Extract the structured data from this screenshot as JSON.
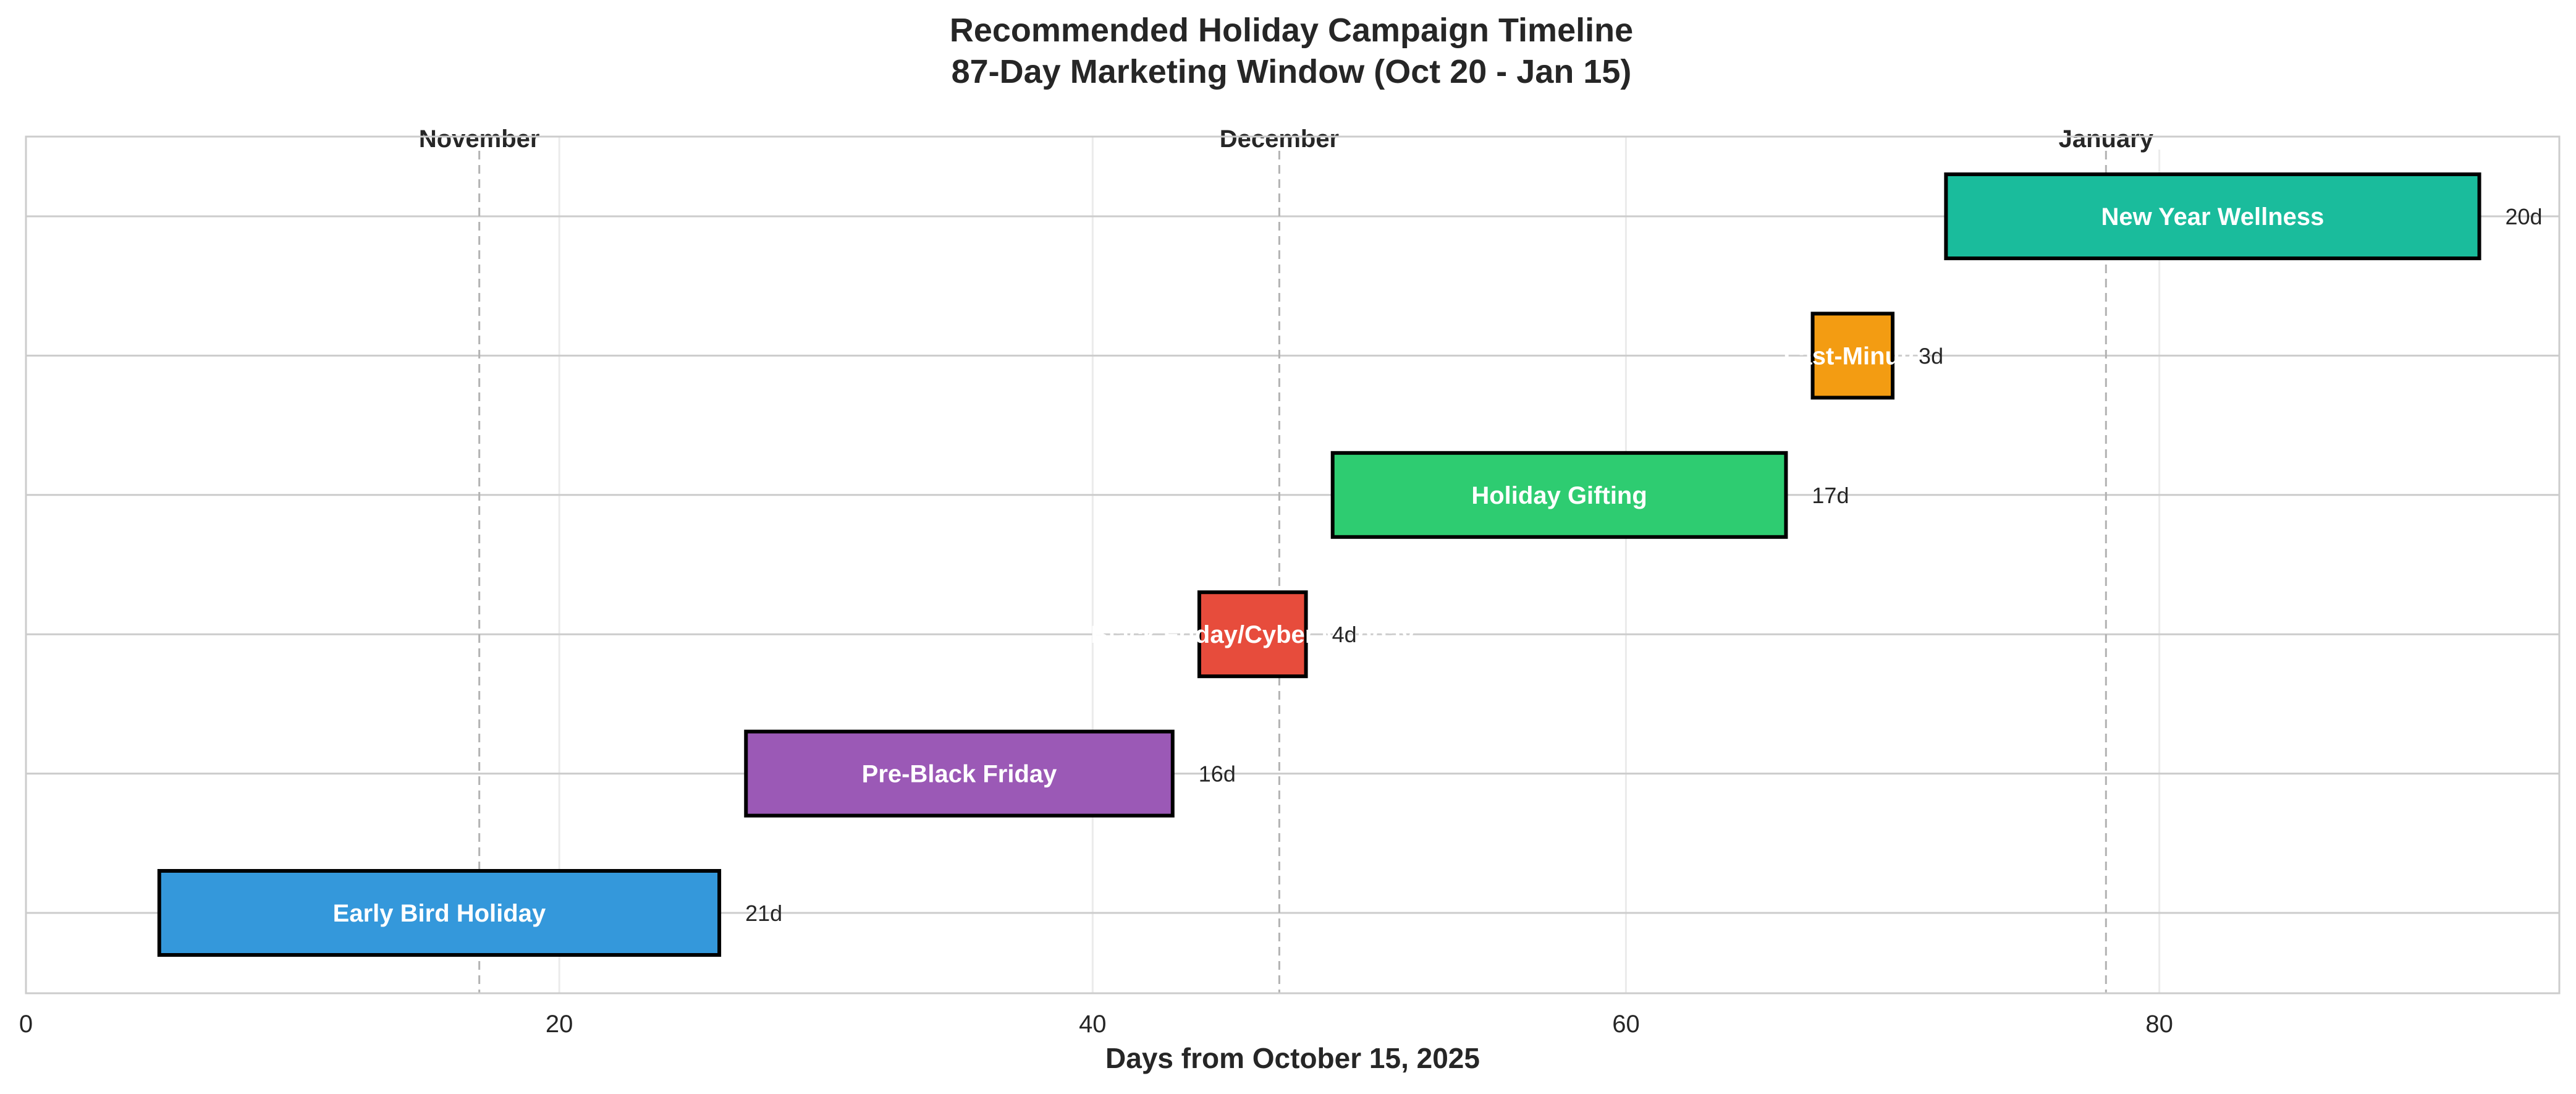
{
  "chart_data": {
    "type": "bar",
    "orientation": "horizontal-gantt",
    "title": "Recommended Holiday Campaign Timeline",
    "subtitle": "87-Day Marketing Window (Oct 20 - Jan 15)",
    "xlabel": "Days from October 15, 2025",
    "ylabel": "",
    "xlim": [
      0,
      95
    ],
    "xticks": [
      0,
      20,
      40,
      60,
      80
    ],
    "grid": true,
    "month_markers": [
      {
        "label": "November",
        "x": 17
      },
      {
        "label": "December",
        "x": 47
      },
      {
        "label": "January",
        "x": 78
      }
    ],
    "series": [
      {
        "label": "Early Bird Holiday",
        "start": 5,
        "end": 26,
        "duration_label": "21d",
        "color": "#3498db"
      },
      {
        "label": "Pre-Black Friday",
        "start": 27,
        "end": 43,
        "duration_label": "16d",
        "color": "#9b59b6"
      },
      {
        "label": "Black Friday/Cyber Monday",
        "start": 44,
        "end": 48,
        "duration_label": "4d",
        "color": "#e74c3c"
      },
      {
        "label": "Holiday Gifting",
        "start": 49,
        "end": 66,
        "duration_label": "17d",
        "color": "#2ecc71"
      },
      {
        "label": "Last-Minute",
        "start": 67,
        "end": 70,
        "duration_label": "3d",
        "color": "#f39c12"
      },
      {
        "label": "New Year Wellness",
        "start": 72,
        "end": 92,
        "duration_label": "20d",
        "color": "#1abc9c"
      }
    ]
  }
}
